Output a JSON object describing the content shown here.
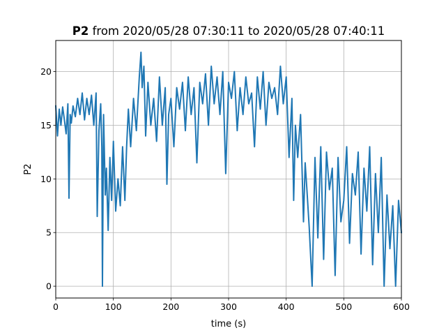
{
  "chart_data": {
    "type": "line",
    "title_bold": "P2",
    "title_rest": " from 2020/05/28 07:30:11 to 2020/05/28 07:40:11",
    "xlabel": "time (s)",
    "ylabel": "P2",
    "xlim": [
      0,
      600
    ],
    "ylim": [
      -1.1,
      22.9
    ],
    "xticks": [
      0,
      100,
      200,
      300,
      400,
      500,
      600
    ],
    "yticks": [
      0,
      5,
      10,
      15,
      20
    ],
    "grid": true,
    "series": [
      {
        "color": "#1f77b4",
        "x": [
          0,
          3,
          6,
          9,
          12,
          15,
          18,
          21,
          23,
          25,
          27,
          30,
          34,
          38,
          42,
          46,
          50,
          54,
          58,
          62,
          66,
          70,
          72,
          75,
          78,
          80,
          81,
          83,
          86,
          88,
          91,
          94,
          97,
          100,
          104,
          108,
          112,
          116,
          120,
          123,
          126,
          130,
          135,
          140,
          145,
          148,
          150,
          153,
          156,
          160,
          165,
          170,
          175,
          180,
          185,
          190,
          193,
          196,
          200,
          205,
          210,
          215,
          220,
          225,
          230,
          235,
          240,
          245,
          250,
          255,
          260,
          265,
          270,
          275,
          280,
          285,
          290,
          295,
          300,
          305,
          310,
          315,
          320,
          325,
          330,
          335,
          340,
          345,
          350,
          355,
          360,
          365,
          370,
          375,
          380,
          385,
          390,
          395,
          400,
          405,
          410,
          413,
          416,
          420,
          425,
          430,
          433,
          436,
          440,
          445,
          450,
          455,
          460,
          465,
          470,
          475,
          480,
          485,
          490,
          495,
          500,
          505,
          510,
          515,
          520,
          525,
          530,
          535,
          540,
          545,
          550,
          555,
          560,
          565,
          570,
          575,
          580,
          585,
          590,
          595,
          600
        ],
        "y": [
          16.8,
          14.0,
          16.5,
          15.0,
          16.7,
          15.5,
          14.2,
          17.0,
          8.2,
          16.0,
          15.2,
          16.8,
          15.8,
          17.5,
          16.0,
          18.0,
          15.5,
          17.5,
          16.0,
          17.8,
          15.0,
          18.0,
          6.5,
          14.5,
          17.0,
          13.0,
          0.0,
          16.0,
          8.5,
          11.0,
          5.2,
          12.0,
          8.0,
          13.5,
          7.0,
          10.0,
          7.5,
          13.0,
          8.0,
          13.0,
          16.5,
          13.0,
          17.5,
          14.5,
          19.5,
          21.8,
          18.5,
          20.5,
          14.0,
          19.0,
          15.0,
          17.5,
          13.5,
          19.5,
          15.0,
          18.5,
          9.5,
          16.0,
          17.5,
          13.0,
          18.5,
          16.5,
          19.0,
          14.5,
          19.5,
          16.0,
          18.5,
          11.5,
          19.0,
          17.0,
          19.8,
          15.0,
          20.5,
          17.0,
          19.5,
          16.0,
          20.0,
          10.5,
          19.0,
          17.5,
          20.0,
          14.5,
          18.5,
          16.0,
          19.5,
          17.0,
          18.0,
          13.0,
          19.5,
          16.5,
          20.0,
          15.0,
          19.0,
          17.5,
          18.5,
          16.0,
          20.5,
          17.0,
          19.5,
          12.0,
          17.5,
          8.0,
          15.0,
          12.0,
          16.0,
          6.0,
          11.5,
          9.0,
          5.5,
          0.0,
          12.0,
          4.5,
          13.0,
          2.5,
          12.5,
          9.0,
          11.0,
          1.0,
          12.0,
          6.0,
          8.0,
          13.0,
          4.0,
          10.5,
          8.5,
          12.5,
          3.0,
          11.0,
          7.0,
          13.0,
          2.0,
          10.5,
          5.0,
          12.0,
          0.0,
          8.5,
          3.5,
          7.5,
          0.0,
          8.0,
          5.0
        ]
      }
    ]
  }
}
